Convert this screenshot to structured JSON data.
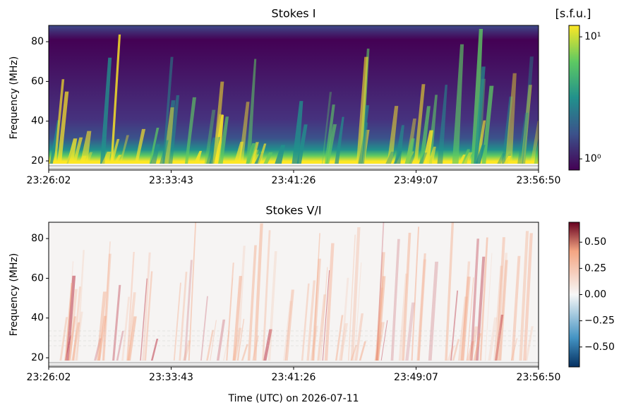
{
  "chart_data": [
    {
      "type": "heatmap",
      "title": "Stokes I",
      "ylabel": "Frequency (MHz)",
      "xticks": [
        "23:26:02",
        "23:33:43",
        "23:41:26",
        "23:49:07",
        "23:56:50"
      ],
      "ylim": [
        15.4,
        88.2
      ],
      "yticks": [
        20,
        40,
        60,
        80
      ],
      "colormap": "viridis",
      "colorbar_label": "[s.f.u.]",
      "colorbar_log": true,
      "clim": [
        0.81,
        12.4
      ],
      "cticks": [
        {
          "value": 1,
          "label": "10⁰"
        },
        {
          "value": 10,
          "label": "10¹"
        }
      ]
    },
    {
      "type": "heatmap",
      "title": "Stokes V/I",
      "ylabel": "Frequency (MHz)",
      "xlabel": "Time (UTC) on 2026-07-11",
      "xticks": [
        "23:26:02",
        "23:33:43",
        "23:41:26",
        "23:49:07",
        "23:56:50"
      ],
      "ylim": [
        15.4,
        88.2
      ],
      "yticks": [
        20,
        40,
        60,
        80
      ],
      "colormap": "RdBu_r",
      "colorbar_log": false,
      "clim": [
        -0.69,
        0.69
      ],
      "cticks": [
        {
          "value": -0.5,
          "label": "−0.50"
        },
        {
          "value": -0.25,
          "label": "−0.25"
        },
        {
          "value": 0,
          "label": "0.00"
        },
        {
          "value": 0.25,
          "label": "0.25"
        },
        {
          "value": 0.5,
          "label": "0.50"
        }
      ]
    }
  ]
}
